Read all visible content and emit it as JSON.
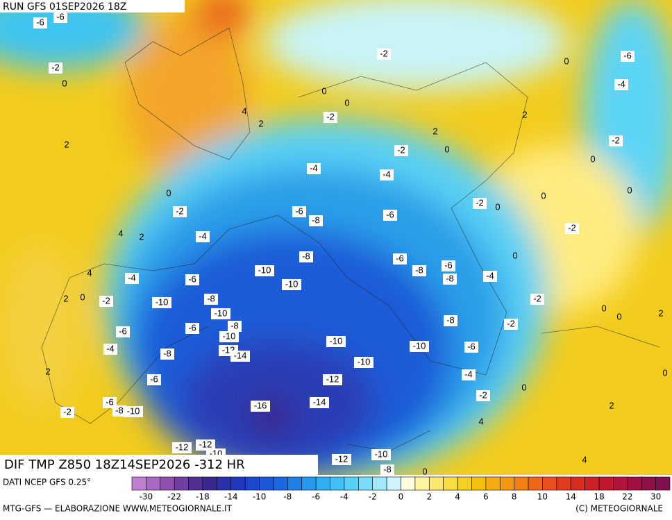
{
  "header": {
    "run": "RUN GFS 01SEP2026 18Z"
  },
  "map": {
    "labels": [
      "-6",
      "-6",
      "-2",
      "0",
      "2",
      "4",
      "2",
      "0",
      "0",
      "-2",
      "-2",
      "0",
      "-6",
      "-4",
      "2",
      "2",
      "-2",
      "0",
      "-2",
      "0",
      "-4",
      "-4",
      "0",
      "-2",
      "-6",
      "-8",
      "-6",
      "-2",
      "0",
      "0",
      "0",
      "-2",
      "4",
      "2",
      "-4",
      "-8",
      "-6",
      "-8",
      "-6",
      "-8",
      "-4",
      "0",
      "-10",
      "-10",
      "4",
      "-4",
      "-6",
      "2",
      "0",
      "-2",
      "-10",
      "-8",
      "-10",
      "-6",
      "-8",
      "-10",
      "-2",
      "0",
      "0",
      "2",
      "-8",
      "-2",
      "-6",
      "-4",
      "-8",
      "-12",
      "-14",
      "-10",
      "-10",
      "-6",
      "-10",
      "2",
      "-6",
      "-12",
      "-4",
      "0",
      "0",
      "-2",
      "-6",
      "-8",
      "-10",
      "-2",
      "-16",
      "-14",
      "2",
      "4",
      "-12",
      "-12",
      "-10",
      "-12",
      "-10",
      "-8",
      "4",
      "0"
    ]
  },
  "footer": {
    "title": "DIF TMP Z850 18Z14SEP2026 -312 HR",
    "source": "DATI NCEP GFS 0.25°",
    "credit": "MTG-GFS — ELABORAZIONE WWW.METEOGIORNALE.IT",
    "copyright": "(C) METEOGIORNALE"
  },
  "colorbar": {
    "ticks": [
      "-30",
      "-22",
      "-18",
      "-14",
      "-10",
      "-8",
      "-6",
      "-4",
      "-2",
      "0",
      "2",
      "4",
      "6",
      "8",
      "10",
      "14",
      "18",
      "22",
      "30"
    ]
  }
}
